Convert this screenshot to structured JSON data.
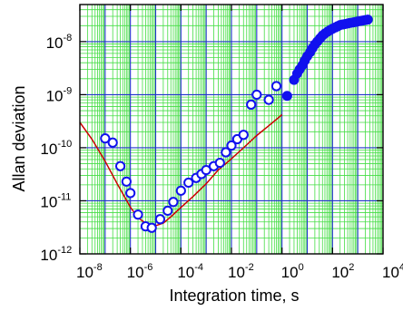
{
  "chart_data": {
    "type": "scatter",
    "title": "",
    "xlabel": "Integration time, s",
    "ylabel": "Allan deviation",
    "x_scale": "log",
    "y_scale": "log",
    "xlim": [
      1e-08,
      10000.0
    ],
    "ylim": [
      1e-12,
      5e-08
    ],
    "x_ticks": [
      {
        "base": "10",
        "exp": "-8",
        "value": 1e-08
      },
      {
        "base": "10",
        "exp": "-6",
        "value": 1e-06
      },
      {
        "base": "10",
        "exp": "-4",
        "value": 0.0001
      },
      {
        "base": "10",
        "exp": "-2",
        "value": 0.01
      },
      {
        "base": "10",
        "exp": "0",
        "value": 1
      },
      {
        "base": "10",
        "exp": "2",
        "value": 100
      },
      {
        "base": "10",
        "exp": "4",
        "value": 10000.0
      }
    ],
    "y_ticks": [
      {
        "base": "10",
        "exp": "-12",
        "value": 1e-12
      },
      {
        "base": "10",
        "exp": "-11",
        "value": 1e-11
      },
      {
        "base": "10",
        "exp": "-10",
        "value": 1e-10
      },
      {
        "base": "10",
        "exp": "-9",
        "value": 1e-09
      },
      {
        "base": "10",
        "exp": "-8",
        "value": 1e-08
      }
    ],
    "grid": true,
    "colors": {
      "major_grid": "#2233cc",
      "minor_grid": "#44dd44",
      "markers": "#1111ee",
      "fit_line": "#cc0000",
      "frame": "#000000"
    },
    "series": [
      {
        "marker": "open-circle",
        "x": [
          1e-07,
          2e-07,
          4e-07,
          7e-07,
          1e-06,
          2e-06,
          4e-06,
          7e-06,
          1.5e-05,
          3e-05,
          5e-05,
          0.0001,
          0.0002,
          0.0004,
          0.00065,
          0.001,
          0.002,
          0.0035,
          0.006,
          0.01,
          0.017,
          0.03,
          0.06,
          0.1,
          0.3,
          0.6
        ],
        "y": [
          1.5e-10,
          1.25e-10,
          4.5e-11,
          2.3e-11,
          1.4e-11,
          5.5e-12,
          3.3e-12,
          3.1e-12,
          4.5e-12,
          6.5e-12,
          9.5e-12,
          1.55e-11,
          2.2e-11,
          2.7e-11,
          3.2e-11,
          3.8e-11,
          4.5e-11,
          5.2e-11,
          8.2e-11,
          1.1e-10,
          1.45e-10,
          1.75e-10,
          6.5e-10,
          1e-09,
          8e-10,
          1.45e-09
        ]
      },
      {
        "marker": "filled-circle",
        "x": [
          1.6,
          3,
          4,
          5,
          6.5,
          8,
          10,
          13,
          16,
          20,
          25,
          32,
          40,
          50,
          65,
          80,
          100,
          130,
          160,
          200,
          250,
          320,
          400,
          500,
          650,
          800,
          1000,
          1300,
          1600,
          2000,
          2500
        ],
        "y": [
          9.5e-10,
          1.9e-09,
          2.5e-09,
          3e-09,
          3.6e-09,
          4.4e-09,
          5.3e-09,
          6.3e-09,
          7.5e-09,
          8.8e-09,
          1e-08,
          1.15e-08,
          1.3e-08,
          1.42e-08,
          1.55e-08,
          1.65e-08,
          1.75e-08,
          1.85e-08,
          1.95e-08,
          2.05e-08,
          2.1e-08,
          2.15e-08,
          2.2e-08,
          2.25e-08,
          2.3e-08,
          2.35e-08,
          2.4e-08,
          2.45e-08,
          2.5e-08,
          2.55e-08,
          2.6e-08
        ]
      },
      {
        "marker": "line",
        "x": [
          1e-08,
          3e-08,
          1e-07,
          3e-07,
          1e-06,
          2e-06,
          4e-06,
          7e-06,
          1e-05,
          2e-05,
          4e-05,
          0.0001,
          0.0003,
          0.001,
          0.003,
          0.01,
          0.03,
          0.1,
          0.3,
          1
        ],
        "y": [
          3e-10,
          1.45e-10,
          5.6e-11,
          2.1e-11,
          7.6e-12,
          4.8e-12,
          3.8e-12,
          3.4e-12,
          3.4e-12,
          3.8e-12,
          5e-12,
          7.5e-12,
          1.2e-11,
          2.1e-11,
          3.8e-11,
          6.2e-11,
          1e-10,
          1.7e-10,
          2.6e-10,
          4.2e-10
        ]
      }
    ]
  }
}
